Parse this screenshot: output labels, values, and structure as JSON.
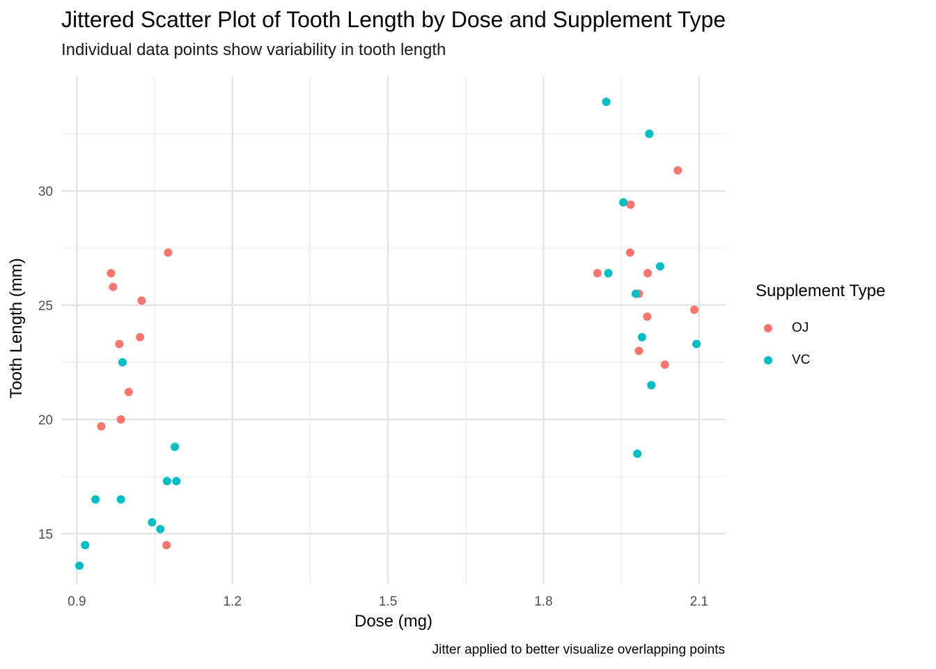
{
  "chart_data": {
    "type": "scatter",
    "title": "Jittered Scatter Plot of Tooth Length by Dose and Supplement Type",
    "subtitle": "Individual data points show variability in tooth length",
    "xlabel": "Dose (mg)",
    "ylabel": "Tooth Length (mm)",
    "caption": "Jitter applied to better visualize overlapping points",
    "xlim": [
      0.87,
      2.15
    ],
    "ylim": [
      12.8,
      35.0
    ],
    "x_ticks": [
      0.9,
      1.2,
      1.5,
      1.8,
      2.1
    ],
    "x_tick_labels": [
      "0.9",
      "1.2",
      "1.5",
      "1.8",
      "2.1"
    ],
    "y_ticks": [
      15,
      20,
      25,
      30
    ],
    "y_tick_labels": [
      "15",
      "20",
      "25",
      "30"
    ],
    "grid": true,
    "legend": {
      "title": "Supplement Type",
      "position": "right"
    },
    "series": [
      {
        "name": "OJ",
        "color": "#F8766D",
        "points": [
          [
            0.966,
            26.4
          ],
          [
            0.97,
            25.8
          ],
          [
            1.025,
            25.2
          ],
          [
            1.022,
            23.6
          ],
          [
            0.982,
            23.3
          ],
          [
            1.0,
            21.2
          ],
          [
            0.985,
            20.0
          ],
          [
            0.947,
            19.7
          ],
          [
            1.076,
            27.3
          ],
          [
            1.073,
            14.5
          ],
          [
            2.059,
            30.9
          ],
          [
            1.968,
            29.4
          ],
          [
            1.967,
            27.3
          ],
          [
            1.904,
            26.4
          ],
          [
            2.001,
            26.4
          ],
          [
            1.984,
            25.5
          ],
          [
            2.0,
            24.5
          ],
          [
            2.091,
            24.8
          ],
          [
            1.984,
            23.0
          ],
          [
            2.034,
            22.4
          ]
        ]
      },
      {
        "name": "VC",
        "color": "#00BFC4",
        "points": [
          [
            0.988,
            22.5
          ],
          [
            1.089,
            18.8
          ],
          [
            1.074,
            17.3
          ],
          [
            1.092,
            17.3
          ],
          [
            0.936,
            16.5
          ],
          [
            0.985,
            16.5
          ],
          [
            1.045,
            15.5
          ],
          [
            1.061,
            15.2
          ],
          [
            0.916,
            14.5
          ],
          [
            0.905,
            13.6
          ],
          [
            1.921,
            33.9
          ],
          [
            2.004,
            32.5
          ],
          [
            1.954,
            29.5
          ],
          [
            1.925,
            26.4
          ],
          [
            2.025,
            26.7
          ],
          [
            1.978,
            25.5
          ],
          [
            1.99,
            23.6
          ],
          [
            2.095,
            23.3
          ],
          [
            2.008,
            21.5
          ],
          [
            1.981,
            18.5
          ]
        ]
      }
    ]
  }
}
